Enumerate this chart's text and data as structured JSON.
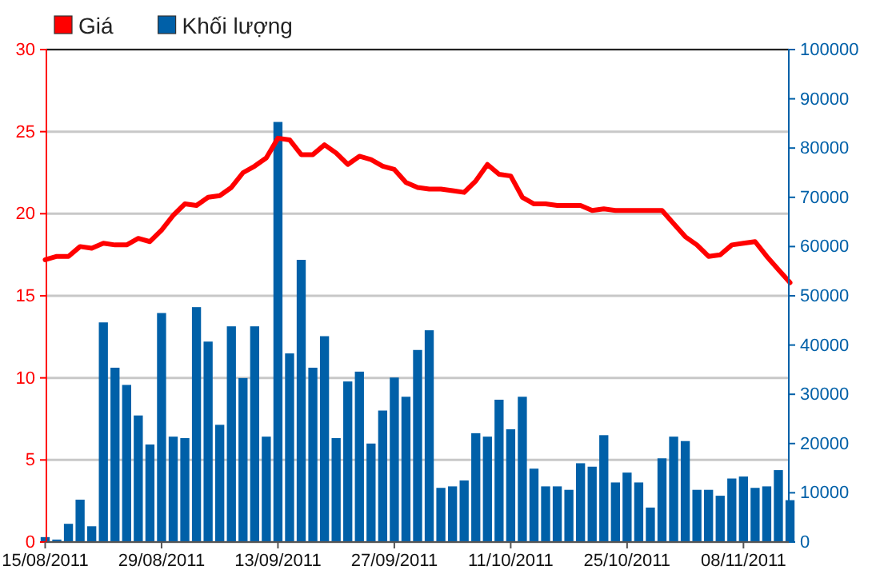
{
  "chart_data": {
    "type": "bar",
    "categories": [
      "15/08/2011",
      null,
      null,
      null,
      null,
      null,
      null,
      null,
      null,
      null,
      "29/08/2011",
      null,
      null,
      null,
      null,
      null,
      null,
      null,
      null,
      null,
      "13/09/2011",
      null,
      null,
      null,
      null,
      null,
      null,
      null,
      null,
      null,
      "27/09/2011",
      null,
      null,
      null,
      null,
      null,
      null,
      null,
      null,
      null,
      "11/10/2011",
      null,
      null,
      null,
      null,
      null,
      null,
      null,
      null,
      null,
      "25/10/2011",
      null,
      null,
      null,
      null,
      null,
      null,
      null,
      null,
      null,
      "08/11/2011",
      null,
      null,
      null,
      null
    ],
    "series": [
      {
        "name": "Giá",
        "type": "line",
        "color": "#ff0000",
        "values": [
          17.2,
          17.4,
          17.4,
          18.0,
          17.9,
          18.2,
          18.1,
          18.1,
          18.5,
          18.3,
          19.0,
          19.9,
          20.6,
          20.5,
          21.0,
          21.1,
          21.6,
          22.5,
          22.9,
          23.4,
          24.6,
          24.5,
          23.6,
          23.6,
          24.2,
          23.7,
          23.0,
          23.5,
          23.3,
          22.9,
          22.7,
          21.9,
          21.6,
          21.5,
          21.5,
          21.4,
          21.3,
          22.0,
          23.0,
          22.4,
          22.3,
          21.0,
          20.6,
          20.6,
          20.5,
          20.5,
          20.5,
          20.2,
          20.3,
          20.2,
          20.2,
          20.2,
          20.2,
          20.2,
          19.4,
          18.6,
          18.1,
          17.4,
          17.5,
          18.1,
          18.2,
          18.3,
          17.4,
          16.6,
          15.8
        ]
      },
      {
        "name": "Khối lượng",
        "type": "bar",
        "axis": "y2",
        "color": "#0060a8",
        "values": [
          1000,
          500,
          3700,
          8600,
          3200,
          44600,
          35400,
          31900,
          25700,
          19800,
          46500,
          21400,
          21100,
          47700,
          40700,
          23800,
          43800,
          33300,
          43800,
          21400,
          85300,
          38300,
          57300,
          35400,
          41800,
          21100,
          32600,
          34600,
          20000,
          26700,
          33400,
          29500,
          39000,
          43000,
          11000,
          11300,
          12500,
          22100,
          21400,
          28900,
          22900,
          29500,
          14900,
          11300,
          11300,
          10600,
          16000,
          15300,
          21700,
          12100,
          14100,
          12100,
          7000,
          17000,
          21400,
          20500,
          10600,
          10600,
          9400,
          12900,
          13300,
          11000,
          11300,
          14600,
          8500
        ]
      }
    ],
    "ylim": [
      0,
      30
    ],
    "yticks": [
      0,
      5,
      10,
      15,
      20,
      25,
      30
    ],
    "y2lim": [
      0,
      100000
    ],
    "y2ticks": [
      0,
      10000,
      20000,
      30000,
      40000,
      50000,
      60000,
      70000,
      80000,
      90000,
      100000
    ],
    "grid": "y",
    "legend": "top left"
  }
}
